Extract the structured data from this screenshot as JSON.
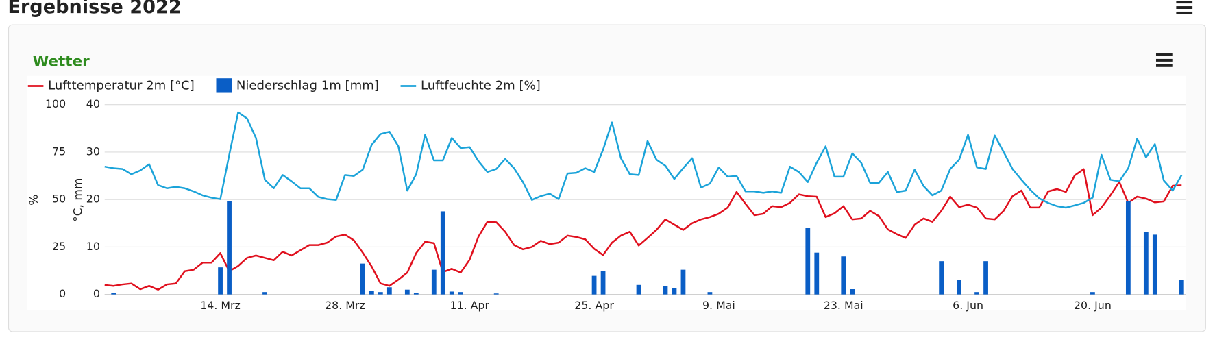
{
  "page_title": "Ergebnisse 2022",
  "chart_data": {
    "type": "line",
    "title": "Wetter",
    "y_label": "°C, mm",
    "y2_label": "%",
    "ylim": [
      0,
      40
    ],
    "yticks": [
      0,
      10,
      20,
      30,
      40
    ],
    "y2lim": [
      0,
      100
    ],
    "y2ticks": [
      0,
      25,
      50,
      75,
      100
    ],
    "grid": true,
    "categories": [
      null,
      null,
      null,
      null,
      null,
      null,
      null,
      null,
      null,
      null,
      null,
      null,
      null,
      "14. Mrz",
      null,
      null,
      null,
      null,
      null,
      null,
      null,
      null,
      null,
      null,
      null,
      null,
      null,
      "28. Mrz",
      null,
      null,
      null,
      null,
      null,
      null,
      null,
      null,
      null,
      null,
      null,
      null,
      null,
      "11. Apr",
      null,
      null,
      null,
      null,
      null,
      null,
      null,
      null,
      null,
      null,
      null,
      null,
      null,
      "25. Apr",
      null,
      null,
      null,
      null,
      null,
      null,
      null,
      null,
      null,
      null,
      null,
      null,
      null,
      "9. Mai",
      null,
      null,
      null,
      null,
      null,
      null,
      null,
      null,
      null,
      null,
      null,
      null,
      null,
      "23. Mai",
      null,
      null,
      null,
      null,
      null,
      null,
      null,
      null,
      null,
      null,
      null,
      null,
      null,
      "6. Jun",
      null,
      null,
      null,
      null,
      null,
      null,
      null,
      null,
      null,
      null,
      null,
      null,
      null,
      "20. Jun",
      null,
      null,
      null,
      null,
      null,
      null,
      null,
      null,
      null,
      null
    ],
    "series": [
      {
        "name": "Lufttemperatur 2m [°C]",
        "type": "line",
        "color": "#e0101e",
        "values": [
          2.0,
          1.8,
          2.1,
          2.3,
          1.1,
          1.8,
          1.0,
          2.1,
          2.3,
          4.9,
          5.2,
          6.7,
          6.7,
          8.7,
          4.9,
          6.0,
          7.7,
          8.2,
          7.7,
          7.2,
          9.0,
          8.2,
          9.3,
          10.4,
          10.4,
          10.9,
          12.2,
          12.6,
          11.4,
          8.8,
          5.9,
          2.3,
          1.8,
          3.1,
          4.6,
          8.7,
          11.1,
          10.8,
          4.7,
          5.4,
          4.6,
          7.3,
          12.2,
          15.3,
          15.2,
          13.2,
          10.4,
          9.5,
          10.0,
          11.3,
          10.6,
          10.9,
          12.4,
          12.1,
          11.6,
          9.6,
          8.3,
          10.9,
          12.4,
          13.2,
          10.3,
          11.9,
          13.6,
          15.8,
          14.7,
          13.6,
          15.0,
          15.8,
          16.3,
          17.0,
          18.3,
          21.6,
          19.1,
          16.7,
          17.0,
          18.6,
          18.4,
          19.3,
          21.1,
          20.7,
          20.6,
          16.3,
          17.1,
          18.6,
          15.8,
          16.0,
          17.6,
          16.5,
          13.7,
          12.7,
          11.9,
          14.7,
          16.0,
          15.3,
          17.6,
          20.6,
          18.4,
          18.9,
          18.3,
          16.0,
          15.8,
          17.6,
          20.7,
          21.9,
          18.3,
          18.3,
          21.7,
          22.2,
          21.6,
          25.1,
          26.4,
          16.7,
          18.3,
          20.9,
          23.7,
          19.3,
          20.6,
          20.2,
          19.4,
          19.6,
          22.9,
          23.0
        ]
      },
      {
        "name": "Niederschlag 1m [mm]",
        "type": "bar",
        "color": "#0a5ec6",
        "values": [
          0,
          0.3,
          0,
          0,
          0,
          0,
          0,
          0,
          0,
          0,
          0,
          0,
          0,
          5.7,
          19.6,
          0,
          0,
          0,
          0.5,
          0,
          0,
          0,
          0,
          0,
          0,
          0,
          0,
          0,
          0,
          6.5,
          0.8,
          0.5,
          1.5,
          0,
          1.0,
          0.3,
          0,
          5.2,
          17.5,
          0.6,
          0.5,
          0,
          0,
          0,
          0.2,
          0,
          0,
          0,
          0,
          0,
          0,
          0,
          0,
          0,
          0,
          3.9,
          4.9,
          0,
          0,
          0,
          2.0,
          0,
          0,
          1.8,
          1.3,
          5.2,
          0,
          0,
          0.5,
          0,
          0,
          0,
          0,
          0,
          0,
          0,
          0,
          0,
          0,
          14.0,
          8.8,
          0,
          0,
          8.0,
          1.1,
          0,
          0,
          0,
          0,
          0,
          0,
          0,
          0,
          0,
          7.0,
          0,
          3.1,
          0,
          0.5,
          7.0,
          0,
          0,
          0,
          0,
          0,
          0,
          0,
          0,
          0,
          0,
          0,
          0.5,
          0,
          0,
          0,
          19.6,
          0,
          13.2,
          12.6,
          0,
          0,
          3.1
        ]
      },
      {
        "name": "Luftfeuchte 2m [%]",
        "type": "line",
        "axis": "y2",
        "color": "#1ba3d9",
        "values": [
          67.3,
          66.5,
          66.1,
          63.3,
          65.3,
          68.6,
          57.6,
          55.9,
          56.7,
          55.9,
          54.3,
          52.2,
          51.0,
          50.2,
          73.5,
          95.9,
          92.7,
          82.4,
          60.4,
          55.9,
          62.9,
          59.6,
          55.9,
          55.9,
          51.4,
          50.2,
          49.8,
          62.9,
          62.4,
          65.7,
          78.8,
          84.5,
          85.7,
          78.0,
          54.7,
          63.3,
          84.1,
          70.6,
          70.6,
          82.4,
          77.1,
          77.6,
          70.2,
          64.5,
          66.1,
          71.4,
          66.5,
          59.2,
          49.8,
          51.8,
          53.1,
          50.2,
          63.7,
          64.1,
          66.5,
          64.5,
          76.3,
          90.6,
          71.8,
          63.3,
          62.9,
          80.8,
          71.0,
          67.8,
          60.8,
          66.5,
          71.8,
          56.3,
          58.4,
          66.9,
          62.0,
          62.4,
          54.3,
          54.3,
          53.5,
          54.3,
          53.5,
          67.3,
          64.5,
          59.2,
          69.4,
          78.0,
          62.0,
          62.0,
          74.3,
          69.4,
          58.8,
          58.8,
          64.5,
          53.9,
          54.7,
          65.7,
          57.1,
          52.2,
          54.7,
          66.1,
          71.0,
          84.1,
          66.9,
          66.1,
          83.7,
          75.1,
          66.1,
          60.4,
          55.1,
          50.6,
          48.2,
          46.5,
          45.7,
          46.9,
          48.2,
          51.0,
          73.5,
          60.4,
          59.6,
          66.5,
          82.0,
          72.2,
          79.2,
          60.0,
          54.7,
          62.9
        ]
      }
    ]
  }
}
